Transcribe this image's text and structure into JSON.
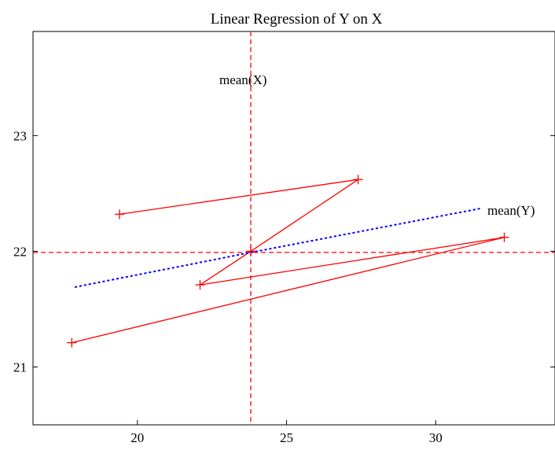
{
  "chart_data": {
    "type": "line",
    "title": "Linear Regression of Y on X",
    "xlabel": "",
    "ylabel": "",
    "xlim": [
      16.5,
      34
    ],
    "ylim": [
      20.5,
      23.9
    ],
    "x_ticks": [
      20,
      25,
      30
    ],
    "y_ticks": [
      21,
      22,
      23
    ],
    "x_tick_labels": [
      "20",
      "25",
      "30"
    ],
    "y_tick_labels": [
      "21",
      "22",
      "23"
    ],
    "grid": false,
    "legend": "none",
    "series": [
      {
        "style": "solid",
        "marker": "plus",
        "color": "#ff0000",
        "points": [
          [
            19.4,
            22.32
          ],
          [
            27.4,
            22.62
          ],
          [
            23.8,
            22.0
          ],
          [
            22.1,
            21.71
          ],
          [
            32.3,
            22.12
          ],
          [
            17.8,
            21.21
          ]
        ]
      },
      {
        "style": "dotted",
        "color": "#0000ff",
        "points": [
          [
            17.9,
            21.69
          ],
          [
            23.8,
            21.99
          ],
          [
            31.5,
            22.37
          ]
        ]
      }
    ],
    "reference_lines": [
      {
        "orientation": "vertical",
        "value": 23.8,
        "label": "mean(X)",
        "color": "#ff0000",
        "style": "dashed"
      },
      {
        "orientation": "horizontal",
        "value": 21.99,
        "label": "mean(Y)",
        "color": "#ff0000",
        "style": "dashed"
      }
    ]
  }
}
